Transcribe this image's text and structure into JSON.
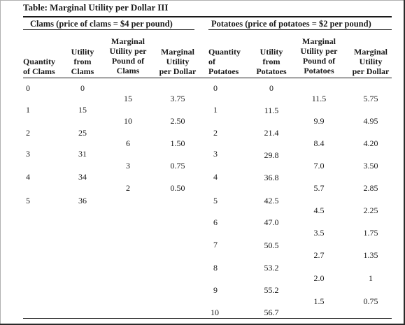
{
  "title": "Table: Marginal Utility per Dollar III",
  "clams": {
    "group_header": "Clams (price of clams = $4 per pound)",
    "headers": {
      "quantity": [
        "Quantity",
        "of Clams"
      ],
      "utility": [
        "Utility",
        "from",
        "Clams"
      ],
      "mu_per_pound": [
        "Marginal",
        "Utility per",
        "Pound of",
        "Clams"
      ],
      "mu_per_dollar": [
        "Marginal",
        "Utility",
        "per Dollar"
      ]
    },
    "quantity": [
      "0",
      "1",
      "2",
      "3",
      "4",
      "5"
    ],
    "utility": [
      "0",
      "15",
      "25",
      "31",
      "34",
      "36"
    ],
    "mu_per_pound": [
      "15",
      "10",
      "6",
      "3",
      "2"
    ],
    "mu_per_dollar": [
      "3.75",
      "2.50",
      "1.50",
      "0.75",
      "0.50"
    ]
  },
  "potatoes": {
    "group_header": "Potatoes (price of potatoes = $2 per pound)",
    "headers": {
      "quantity": [
        "Quantity",
        "of",
        "Potatoes"
      ],
      "utility": [
        "Utility",
        "from",
        "Potatoes"
      ],
      "mu_per_pound": [
        "Marginal",
        "Utility per",
        "Pound of",
        "Potatoes"
      ],
      "mu_per_dollar": [
        "Marginal",
        "Utility",
        "per Dollar"
      ]
    },
    "quantity": [
      "0",
      "1",
      "2",
      "3",
      "4",
      "5",
      "6",
      "7",
      "8",
      "9",
      "10"
    ],
    "utility": [
      "0",
      "11.5",
      "21.4",
      "29.8",
      "36.8",
      "42.5",
      "47.0",
      "50.5",
      "53.2",
      "55.2",
      "56.7"
    ],
    "mu_per_pound": [
      "11.5",
      "9.9",
      "8.4",
      "7.0",
      "5.7",
      "4.5",
      "3.5",
      "2.7",
      "2.0",
      "1.5"
    ],
    "mu_per_dollar": [
      "5.75",
      "4.95",
      "4.20",
      "3.50",
      "2.85",
      "2.25",
      "1.75",
      "1.35",
      "1",
      "0.75"
    ]
  }
}
